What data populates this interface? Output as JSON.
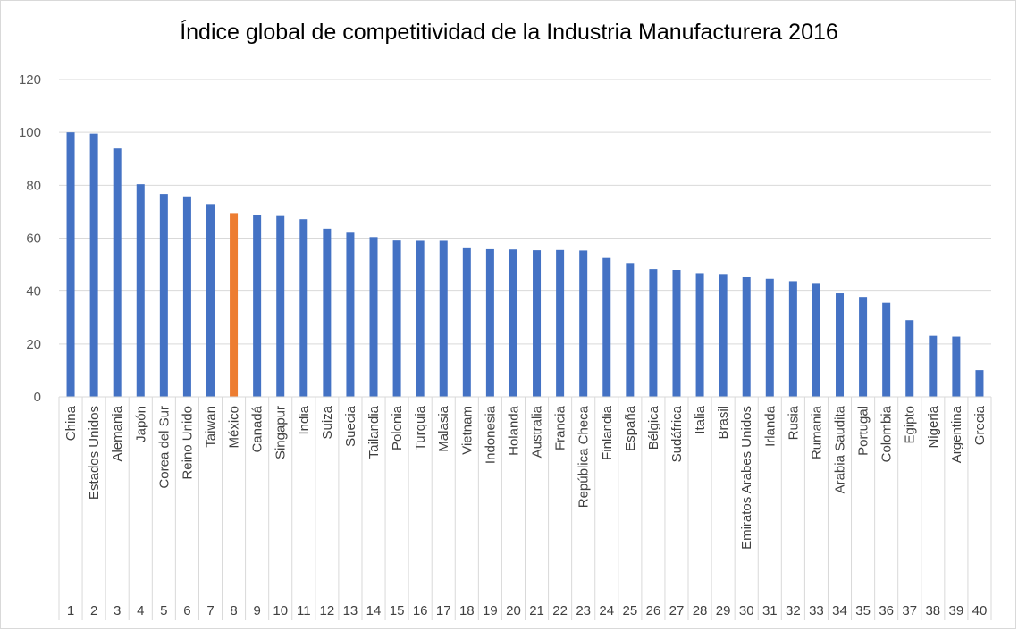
{
  "chart_data": {
    "type": "bar",
    "title": "Índice global de competitividad de la Industria Manufacturera 2016",
    "xlabel": "",
    "ylabel": "",
    "ylim": [
      0,
      120
    ],
    "yticks": [
      0,
      20,
      40,
      60,
      80,
      100,
      120
    ],
    "grid": true,
    "legend": "none",
    "colors": {
      "default": "#4472c4",
      "highlight": "#ed7d31"
    },
    "highlight_category": "México",
    "categories": [
      "China",
      "Estados Unidos",
      "Alemania",
      "Japón",
      "Corea del Sur",
      "Reino Unido",
      "Taiwan",
      "México",
      "Canadá",
      "Singapur",
      "India",
      "Suiza",
      "Suecia",
      "Tailandia",
      "Polonia",
      "Turquia",
      "Malasia",
      "Vietnam",
      "Indonesia",
      "Holanda",
      "Australia",
      "Francia",
      "República Checa",
      "Finlandia",
      "España",
      "Bélgica",
      "Sudáfrica",
      "Italia",
      "Brasil",
      "Emiratos Arabes Unidos",
      "Irlanda",
      "Rusia",
      "Rumania",
      "Arabia Saudita",
      "Portugal",
      "Colombia",
      "Egipto",
      "Nigeria",
      "Argentina",
      "Grecia"
    ],
    "ranks": [
      "1",
      "2",
      "3",
      "4",
      "5",
      "6",
      "7",
      "8",
      "9",
      "10",
      "11",
      "12",
      "13",
      "14",
      "15",
      "16",
      "17",
      "18",
      "19",
      "20",
      "21",
      "22",
      "23",
      "24",
      "25",
      "26",
      "27",
      "28",
      "29",
      "30",
      "31",
      "32",
      "33",
      "34",
      "35",
      "36",
      "37",
      "38",
      "39",
      "40"
    ],
    "values": [
      100,
      99.5,
      93.9,
      80.4,
      76.7,
      75.8,
      72.9,
      69.5,
      68.7,
      68.4,
      67.2,
      63.6,
      62.1,
      60.4,
      59.1,
      59.0,
      59.0,
      56.5,
      55.8,
      55.7,
      55.4,
      55.5,
      55.3,
      52.5,
      50.6,
      48.3,
      48.0,
      46.5,
      46.2,
      45.3,
      44.7,
      43.8,
      42.8,
      39.2,
      37.8,
      35.6,
      29.0,
      23.1,
      22.8,
      10.1
    ]
  }
}
